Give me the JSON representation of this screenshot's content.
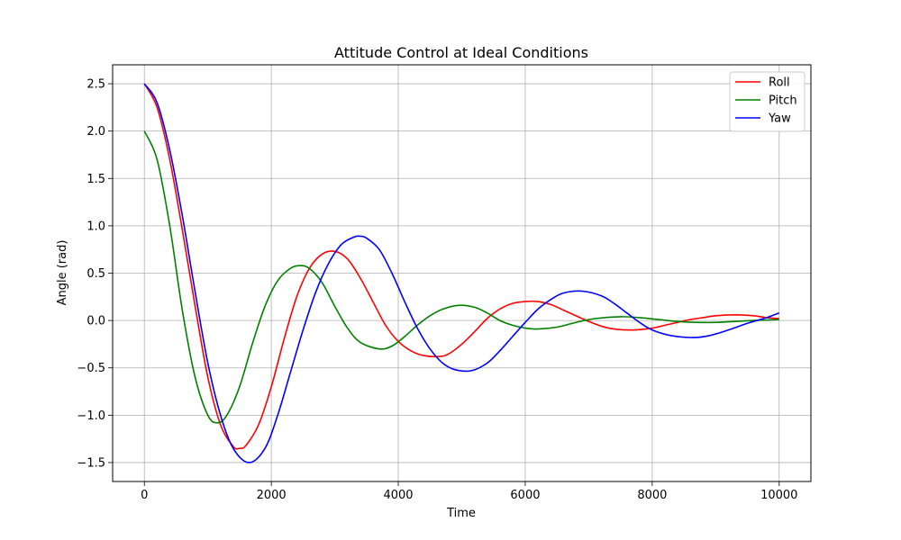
{
  "chart_data": {
    "type": "line",
    "title": "Attitude Control at Ideal Conditions",
    "xlabel": "Time",
    "ylabel": "Angle (rad)",
    "xlim": [
      -500,
      10500
    ],
    "ylim": [
      -1.7,
      2.7
    ],
    "xticks": [
      0,
      2000,
      4000,
      6000,
      8000,
      10000
    ],
    "xtick_labels": [
      "0",
      "2000",
      "4000",
      "6000",
      "8000",
      "10000"
    ],
    "yticks": [
      -1.5,
      -1.0,
      -0.5,
      0.0,
      0.5,
      1.0,
      1.5,
      2.0,
      2.5
    ],
    "ytick_labels": [
      "−1.5",
      "−1.0",
      "−0.5",
      "0.0",
      "0.5",
      "1.0",
      "1.5",
      "2.0",
      "2.5"
    ],
    "grid": true,
    "legend_position": "top-right",
    "series": [
      {
        "name": "Roll",
        "color": "#ff0000",
        "x": [
          0,
          200,
          400,
          600,
          800,
          1000,
          1200,
          1400,
          1500,
          1600,
          1800,
          2000,
          2200,
          2400,
          2600,
          2800,
          3000,
          3200,
          3400,
          3600,
          3800,
          4000,
          4200,
          4400,
          4650,
          4800,
          5000,
          5200,
          5400,
          5600,
          5800,
          6000,
          6200,
          6400,
          6600,
          6800,
          7000,
          7200,
          7400,
          7700,
          8000,
          8200,
          8400,
          8600,
          8800,
          9000,
          9300,
          9600,
          9800,
          10000
        ],
        "y": [
          2.5,
          2.25,
          1.7,
          0.95,
          0.15,
          -0.6,
          -1.1,
          -1.33,
          -1.35,
          -1.32,
          -1.1,
          -0.7,
          -0.2,
          0.25,
          0.55,
          0.7,
          0.73,
          0.65,
          0.45,
          0.2,
          -0.05,
          -0.22,
          -0.32,
          -0.37,
          -0.38,
          -0.35,
          -0.25,
          -0.12,
          0.02,
          0.12,
          0.18,
          0.2,
          0.2,
          0.17,
          0.11,
          0.05,
          -0.01,
          -0.06,
          -0.09,
          -0.1,
          -0.08,
          -0.05,
          -0.02,
          0.01,
          0.03,
          0.05,
          0.06,
          0.05,
          0.03,
          0.02
        ]
      },
      {
        "name": "Pitch",
        "color": "#008000",
        "x": [
          0,
          200,
          400,
          600,
          800,
          1000,
          1150,
          1300,
          1500,
          1700,
          1900,
          2100,
          2300,
          2450,
          2600,
          2800,
          3000,
          3200,
          3400,
          3700,
          3900,
          4100,
          4300,
          4500,
          4700,
          4950,
          5200,
          5400,
          5600,
          5800,
          6000,
          6200,
          6500,
          6800,
          7100,
          7500,
          7800,
          8100,
          8400,
          8700,
          9000,
          9300,
          9600,
          10000
        ],
        "y": [
          2.0,
          1.7,
          1.0,
          0.1,
          -0.6,
          -1.0,
          -1.08,
          -1.0,
          -0.7,
          -0.25,
          0.15,
          0.42,
          0.55,
          0.58,
          0.55,
          0.4,
          0.15,
          -0.08,
          -0.23,
          -0.3,
          -0.27,
          -0.17,
          -0.05,
          0.05,
          0.12,
          0.16,
          0.14,
          0.08,
          0.0,
          -0.05,
          -0.08,
          -0.09,
          -0.07,
          -0.02,
          0.02,
          0.04,
          0.03,
          0.01,
          -0.01,
          -0.02,
          -0.02,
          -0.01,
          0.0,
          0.01
        ]
      },
      {
        "name": "Yaw",
        "color": "#0000ff",
        "x": [
          0,
          200,
          400,
          600,
          800,
          1000,
          1200,
          1400,
          1650,
          1900,
          2100,
          2300,
          2500,
          2700,
          2900,
          3100,
          3300,
          3400,
          3500,
          3700,
          3900,
          4100,
          4300,
          4500,
          4700,
          4900,
          5150,
          5400,
          5600,
          5800,
          6000,
          6200,
          6400,
          6600,
          6900,
          7200,
          7400,
          7600,
          7800,
          8000,
          8300,
          8650,
          8900,
          9200,
          9500,
          9800,
          10000
        ],
        "y": [
          2.5,
          2.3,
          1.8,
          1.1,
          0.3,
          -0.45,
          -1.0,
          -1.35,
          -1.5,
          -1.35,
          -1.0,
          -0.55,
          -0.1,
          0.3,
          0.6,
          0.8,
          0.88,
          0.89,
          0.87,
          0.75,
          0.5,
          0.2,
          -0.08,
          -0.3,
          -0.45,
          -0.52,
          -0.53,
          -0.45,
          -0.32,
          -0.17,
          -0.02,
          0.12,
          0.22,
          0.29,
          0.31,
          0.26,
          0.18,
          0.08,
          -0.02,
          -0.1,
          -0.16,
          -0.18,
          -0.16,
          -0.1,
          -0.03,
          0.03,
          0.08
        ]
      }
    ]
  }
}
